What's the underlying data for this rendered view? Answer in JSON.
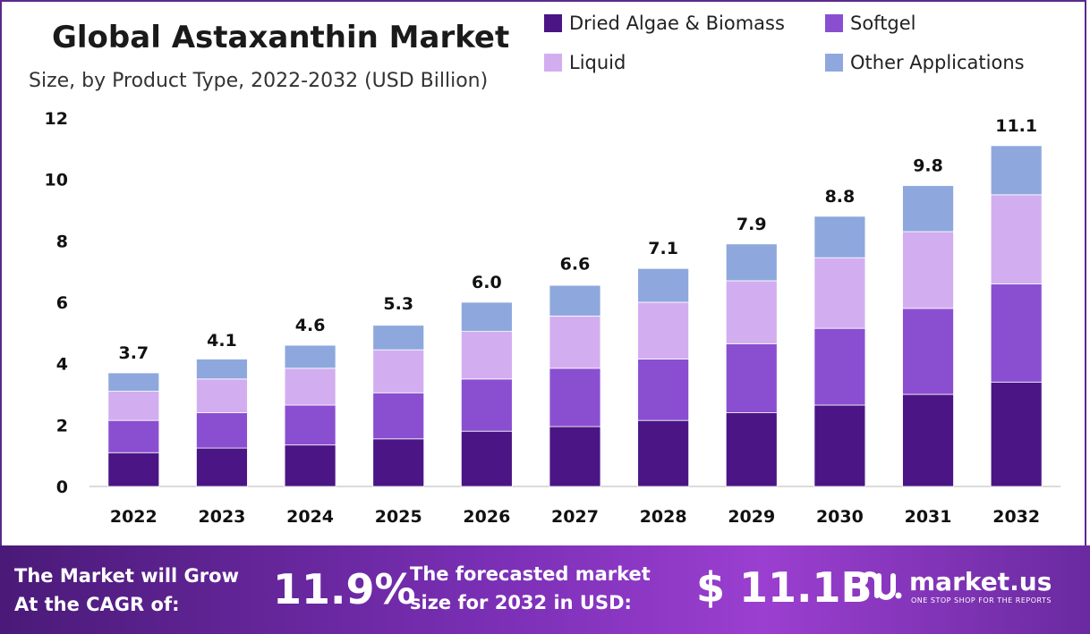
{
  "header": {
    "title": "Global Astaxanthin Market",
    "subtitle": "Size, by Product Type, 2022-2032 (USD Billion)"
  },
  "legend": [
    {
      "label": "Dried Algae & Biomass",
      "color": "#4b1585"
    },
    {
      "label": "Softgel",
      "color": "#8a4fd0"
    },
    {
      "label": "Liquid",
      "color": "#d2aef0"
    },
    {
      "label": "Other Applications",
      "color": "#8ea8dd"
    }
  ],
  "chart_data": {
    "type": "bar",
    "stacked": true,
    "title": "Global Astaxanthin Market",
    "subtitle": "Size, by Product Type, 2022-2032 (USD Billion)",
    "categories": [
      "2022",
      "2023",
      "2024",
      "2025",
      "2026",
      "2027",
      "2028",
      "2029",
      "2030",
      "2031",
      "2032"
    ],
    "series": [
      {
        "name": "Dried Algae & Biomass",
        "color": "#4b1585",
        "values": [
          1.1,
          1.25,
          1.35,
          1.55,
          1.8,
          1.95,
          2.15,
          2.4,
          2.65,
          3.0,
          3.4
        ]
      },
      {
        "name": "Softgel",
        "color": "#8a4fd0",
        "values": [
          1.05,
          1.15,
          1.3,
          1.5,
          1.7,
          1.9,
          2.0,
          2.25,
          2.5,
          2.8,
          3.2
        ]
      },
      {
        "name": "Liquid",
        "color": "#d2aef0",
        "values": [
          0.95,
          1.1,
          1.2,
          1.4,
          1.55,
          1.7,
          1.85,
          2.05,
          2.3,
          2.5,
          2.9
        ]
      },
      {
        "name": "Other Applications",
        "color": "#8ea8dd",
        "values": [
          0.6,
          0.65,
          0.75,
          0.8,
          0.95,
          1.0,
          1.1,
          1.2,
          1.35,
          1.5,
          1.6
        ]
      }
    ],
    "totals": [
      "3.7",
      "4.1",
      "4.6",
      "5.3",
      "6.0",
      "6.6",
      "7.1",
      "7.9",
      "8.8",
      "9.8",
      "11.1"
    ],
    "ylim": [
      0,
      12
    ],
    "yticks": [
      "0",
      "2",
      "4",
      "6",
      "8",
      "10",
      "12"
    ],
    "grid": false,
    "legend_position": "top-right"
  },
  "footer": {
    "cagr_label_line1": "The Market will Grow",
    "cagr_label_line2": "At the CAGR of:",
    "cagr_value": "11.9%",
    "forecast_label_line1": "The forecasted market",
    "forecast_label_line2": "size for 2032 in USD:",
    "forecast_value": "$ 11.1B",
    "brand_name": "market.us",
    "brand_tagline": "ONE STOP SHOP FOR THE REPORTS"
  }
}
